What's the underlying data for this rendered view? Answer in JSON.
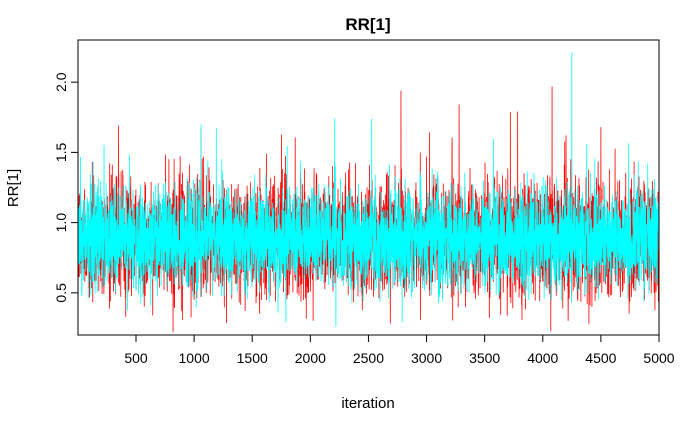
{
  "chart_data": {
    "type": "line",
    "title": "RR[1]",
    "xlabel": "iteration",
    "ylabel": "RR[1]",
    "xlim": [
      1,
      5000
    ],
    "ylim": [
      0.2,
      2.3
    ],
    "x_ticks": [
      500,
      1000,
      1500,
      2000,
      2500,
      3000,
      3500,
      4000,
      4500,
      5000
    ],
    "x_tick_labels": [
      "500",
      "1000",
      "1500",
      "2000",
      "2500",
      "3000",
      "3500",
      "4000",
      "4500",
      "5000"
    ],
    "y_ticks": [
      0.5,
      1.0,
      1.5,
      2.0
    ],
    "y_tick_labels": [
      "0.5",
      "1.0",
      "1.5",
      "2.0"
    ],
    "grid": false,
    "series": [
      {
        "color": "#ff0000",
        "center": 0.88,
        "typical_range": [
          0.55,
          1.35
        ],
        "peaks": [
          [
            350,
            1.69
          ],
          [
            1060,
            1.67
          ],
          [
            2780,
            1.94
          ],
          [
            3280,
            1.84
          ],
          [
            4080,
            1.97
          ],
          [
            4200,
            1.62
          ],
          [
            4500,
            1.68
          ]
        ],
        "troughs": [
          [
            3540,
            0.32
          ],
          [
            1000,
            0.45
          ]
        ]
      },
      {
        "color": "#00ffff",
        "center": 0.88,
        "typical_range": [
          0.6,
          1.3
        ],
        "peaks": [
          [
            1060,
            1.7
          ],
          [
            1790,
            1.72
          ],
          [
            2210,
            1.74
          ],
          [
            2790,
            1.58
          ],
          [
            4250,
            2.21
          ]
        ],
        "troughs": [
          [
            1790,
            0.29
          ],
          [
            2220,
            0.26
          ],
          [
            2790,
            0.29
          ]
        ]
      }
    ]
  }
}
